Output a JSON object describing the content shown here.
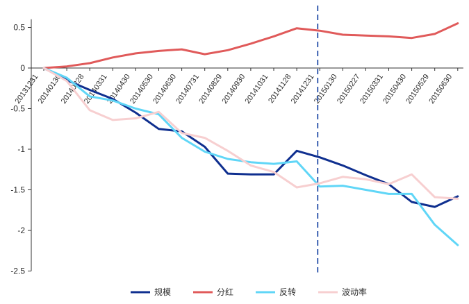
{
  "chart_data": {
    "type": "line",
    "title": "",
    "xlabel": "",
    "ylabel": "",
    "x": [
      "20131231",
      "20140130",
      "20140228",
      "20140331",
      "20140430",
      "20140530",
      "20140630",
      "20140731",
      "20140829",
      "20140930",
      "20141031",
      "20141128",
      "20141231",
      "20150130",
      "20150227",
      "20150331",
      "20150430",
      "20150529",
      "20150630"
    ],
    "ylim": [
      -2.5,
      0.6
    ],
    "yticks": [
      0.5,
      0,
      -0.5,
      -1,
      -1.5,
      -2,
      -2.5
    ],
    "ytick_labels": [
      "0.5",
      "0",
      "-0.5",
      "-1",
      "-1.5",
      "-2",
      "-2.5"
    ],
    "divider_at": "20141231",
    "legend_position": "bottom",
    "grid": false,
    "series": [
      {
        "name": "规模",
        "color": "#0f2f8f",
        "values": [
          0,
          -0.15,
          -0.27,
          -0.38,
          -0.55,
          -0.75,
          -0.78,
          -0.97,
          -1.3,
          -1.31,
          -1.31,
          -1.02,
          -1.1,
          -1.2,
          -1.32,
          -1.43,
          -1.65,
          -1.71,
          -1.58
        ]
      },
      {
        "name": "分红",
        "color": "#e05a5a",
        "values": [
          0,
          0.02,
          0.06,
          0.13,
          0.18,
          0.21,
          0.23,
          0.17,
          0.22,
          0.3,
          0.39,
          0.49,
          0.46,
          0.41,
          0.4,
          0.39,
          0.37,
          0.42,
          0.55
        ]
      },
      {
        "name": "反转",
        "color": "#60d6f7",
        "values": [
          0,
          -0.12,
          -0.35,
          -0.4,
          -0.5,
          -0.57,
          -0.86,
          -1.03,
          -1.12,
          -1.16,
          -1.18,
          -1.15,
          -1.46,
          -1.45,
          -1.5,
          -1.55,
          -1.55,
          -1.93,
          -2.18
        ]
      },
      {
        "name": "波动率",
        "color": "#f7cfd0",
        "values": [
          0,
          -0.16,
          -0.52,
          -0.64,
          -0.62,
          -0.54,
          -0.8,
          -0.86,
          -1.02,
          -1.2,
          -1.28,
          -1.47,
          -1.42,
          -1.34,
          -1.37,
          -1.43,
          -1.31,
          -1.59,
          -1.61
        ]
      }
    ]
  }
}
